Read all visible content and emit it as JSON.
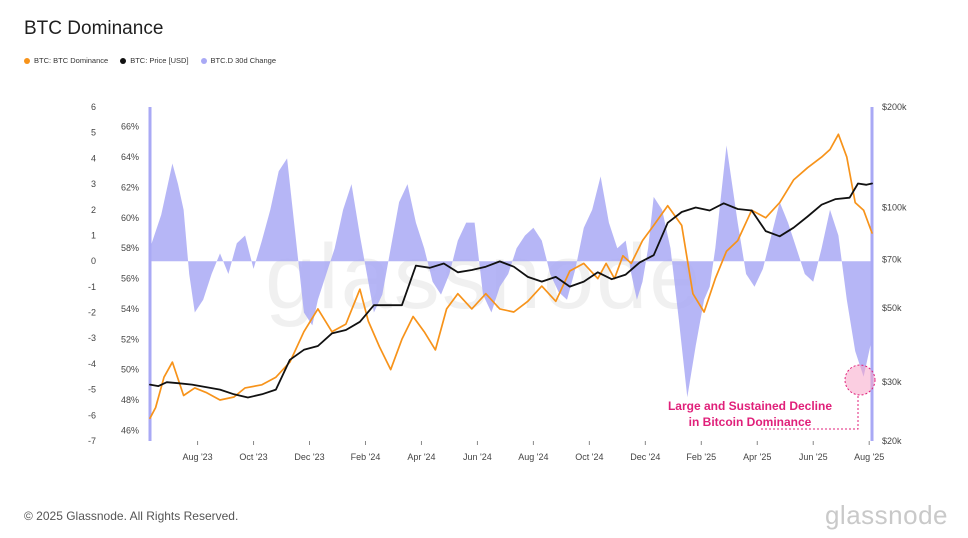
{
  "title": "BTC Dominance",
  "legend": [
    {
      "label": "BTC: BTC Dominance",
      "color": "#f7931a"
    },
    {
      "label": "BTC: Price [USD]",
      "color": "#111111"
    },
    {
      "label": "BTC.D 30d Change",
      "color": "#a9a9f5"
    }
  ],
  "footer": "© 2025 Glassnode. All Rights Reserved.",
  "brand": "glassnode",
  "watermark": "glassnode",
  "annotation": {
    "line1": "Large and Sustained Decline",
    "line2": "in Bitcoin Dominance",
    "color": "#e0207a"
  },
  "chart_data": {
    "type": "line",
    "x_ticks": [
      "Aug '23",
      "Oct '23",
      "Dec '23",
      "Feb '24",
      "Apr '24",
      "Jun '24",
      "Aug '24",
      "Oct '24",
      "Dec '24",
      "Feb '25",
      "Apr '25",
      "Jun '25",
      "Aug '25"
    ],
    "x_range": [
      0,
      25.8
    ],
    "axes": {
      "left_outer": {
        "ticks": [
          "6",
          "5",
          "4",
          "3",
          "2",
          "1",
          "0",
          "-1",
          "-2",
          "-3",
          "-4",
          "-5",
          "-6",
          "-7"
        ],
        "range": [
          -7,
          6
        ]
      },
      "left_inner": {
        "ticks": [
          "66%",
          "64%",
          "62%",
          "60%",
          "58%",
          "56%",
          "54%",
          "52%",
          "50%",
          "48%",
          "46%"
        ],
        "range": [
          45.3,
          67.3
        ]
      },
      "right": {
        "ticks": [
          "$200k",
          "$100k",
          "$70k",
          "$50k",
          "$30k",
          "$20k"
        ],
        "scale": "log",
        "range": [
          20000,
          200000
        ]
      }
    },
    "series": [
      {
        "name": "BTC: BTC Dominance",
        "axis": "left_inner",
        "color": "#f7931a",
        "x": [
          0,
          0.2,
          0.5,
          0.8,
          1.2,
          1.6,
          2.0,
          2.5,
          3.0,
          3.4,
          4.0,
          4.5,
          5.0,
          5.5,
          6.0,
          6.5,
          7.0,
          7.5,
          7.8,
          8.2,
          8.6,
          9.0,
          9.4,
          9.8,
          10.2,
          10.6,
          11.0,
          11.5,
          12.0,
          12.5,
          13.0,
          13.5,
          14.0,
          14.5,
          15.0,
          15.5,
          16.0,
          16.3,
          16.6,
          16.9,
          17.2,
          17.6,
          18.0,
          18.5,
          19.0,
          19.4,
          19.8,
          20.2,
          20.6,
          21.0,
          21.5,
          22.0,
          22.5,
          23.0,
          23.5,
          24.0,
          24.3,
          24.6,
          24.9,
          25.2,
          25.5,
          25.8
        ],
        "y": [
          46.8,
          47.5,
          49.5,
          50.5,
          48.3,
          48.8,
          48.5,
          48.0,
          48.2,
          48.8,
          49.0,
          49.5,
          50.5,
          52.5,
          54.0,
          52.5,
          53.0,
          55.3,
          53.2,
          51.5,
          50.0,
          52.0,
          53.5,
          52.5,
          51.3,
          54.0,
          55.0,
          54.0,
          55.0,
          54.0,
          53.8,
          54.5,
          55.5,
          54.5,
          56.5,
          57.0,
          56.0,
          57.0,
          56.0,
          57.5,
          57.0,
          58.5,
          59.5,
          60.8,
          59.5,
          55.0,
          53.8,
          56.0,
          57.8,
          58.5,
          60.5,
          60.0,
          61.0,
          62.5,
          63.3,
          64.0,
          64.5,
          65.5,
          64.0,
          61.0,
          60.5,
          59.0
        ]
      },
      {
        "name": "BTC: Price [USD]",
        "axis": "right",
        "color": "#111111",
        "x": [
          0,
          0.3,
          0.6,
          1.0,
          1.5,
          2.0,
          2.5,
          3.0,
          3.5,
          4.0,
          4.5,
          5.0,
          5.5,
          6.0,
          6.5,
          7.0,
          7.5,
          8.0,
          8.5,
          9.0,
          9.5,
          10.0,
          10.5,
          11.0,
          11.5,
          12.0,
          12.5,
          13.0,
          13.5,
          14.0,
          14.5,
          15.0,
          15.5,
          16.0,
          16.5,
          17.0,
          17.5,
          18.0,
          18.5,
          19.0,
          19.5,
          20.0,
          20.5,
          21.0,
          21.5,
          22.0,
          22.5,
          23.0,
          23.5,
          24.0,
          24.5,
          25.0,
          25.3,
          25.6,
          25.8
        ],
        "y": [
          29500,
          29200,
          30000,
          29800,
          29500,
          29000,
          28500,
          27600,
          27000,
          27600,
          28500,
          35000,
          37500,
          38500,
          42000,
          43000,
          45500,
          51000,
          51000,
          51000,
          67000,
          66000,
          68000,
          64000,
          65000,
          66500,
          69000,
          66500,
          62000,
          60000,
          62000,
          58000,
          60000,
          64000,
          61000,
          63000,
          68500,
          72000,
          90000,
          97000,
          100000,
          98000,
          103000,
          99000,
          98000,
          85000,
          82000,
          87000,
          94000,
          102000,
          106000,
          107000,
          118000,
          117000,
          118000
        ]
      },
      {
        "name": "BTC.D 30d Change",
        "axis": "left_outer",
        "color": "#a9a9f5",
        "type": "area",
        "x": [
          0,
          0.4,
          0.8,
          1.0,
          1.2,
          1.4,
          1.6,
          1.9,
          2.2,
          2.5,
          2.8,
          3.1,
          3.4,
          3.7,
          4.0,
          4.3,
          4.6,
          4.9,
          5.2,
          5.5,
          5.8,
          6.0,
          6.3,
          6.6,
          6.9,
          7.2,
          7.5,
          7.8,
          8.0,
          8.3,
          8.6,
          8.9,
          9.2,
          9.5,
          9.8,
          10.1,
          10.4,
          10.7,
          11.0,
          11.3,
          11.6,
          11.9,
          12.2,
          12.5,
          12.8,
          13.1,
          13.4,
          13.7,
          14.0,
          14.3,
          14.6,
          14.9,
          15.2,
          15.5,
          15.8,
          16.1,
          16.4,
          16.7,
          17.0,
          17.2,
          17.4,
          17.6,
          17.8,
          18.0,
          18.3,
          18.6,
          18.9,
          19.2,
          19.5,
          19.8,
          20.0,
          20.2,
          20.4,
          20.6,
          20.8,
          21.0,
          21.3,
          21.6,
          21.9,
          22.2,
          22.5,
          22.8,
          23.1,
          23.4,
          23.7,
          24.0,
          24.3,
          24.6,
          24.9,
          25.2,
          25.5,
          25.8
        ],
        "y": [
          0.5,
          1.8,
          3.8,
          3.0,
          2.0,
          -0.5,
          -2.0,
          -1.5,
          -0.5,
          0.3,
          -0.5,
          0.7,
          1.0,
          -0.3,
          0.8,
          2.0,
          3.5,
          4.0,
          1.0,
          -2.0,
          -2.5,
          -1.5,
          -0.5,
          0.5,
          2.0,
          3.0,
          1.0,
          -0.8,
          -2.0,
          -1.3,
          0.5,
          2.3,
          3.0,
          1.5,
          0.5,
          -0.8,
          -1.3,
          -0.5,
          0.8,
          1.5,
          1.5,
          -1.3,
          -2.0,
          -1.0,
          -0.5,
          0.5,
          1.0,
          1.3,
          0.8,
          -0.5,
          -1.2,
          -1.5,
          -0.3,
          1.3,
          2.0,
          3.3,
          1.5,
          0.5,
          0.8,
          -0.5,
          -1.5,
          -0.8,
          0.5,
          2.5,
          2.0,
          0.5,
          -2.3,
          -5.3,
          -3.3,
          -1.5,
          -1.0,
          0.5,
          2.5,
          4.5,
          3.0,
          1.5,
          -0.5,
          -1.0,
          -0.3,
          1.0,
          2.3,
          1.5,
          0.5,
          -0.5,
          -0.8,
          0.5,
          2.0,
          1.0,
          -1.5,
          -3.5,
          -4.5,
          -3.0
        ]
      }
    ]
  }
}
